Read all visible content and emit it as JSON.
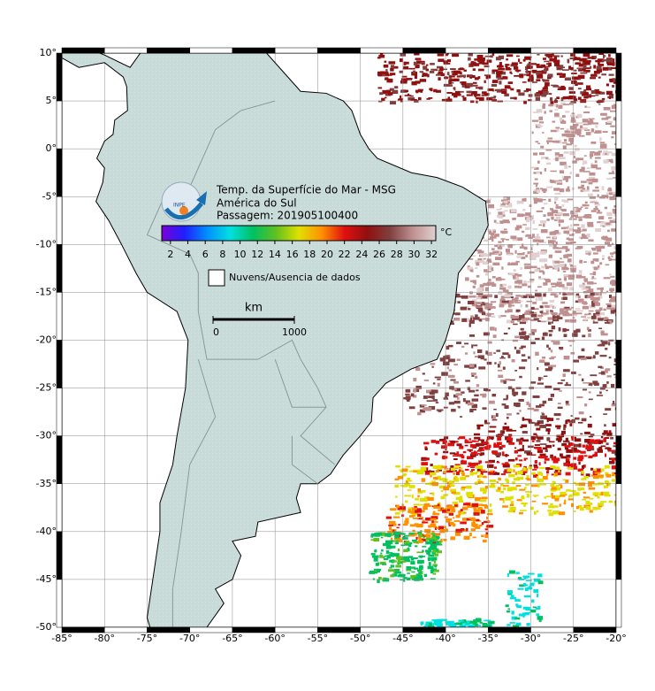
{
  "map": {
    "title_lines": [
      "Temp. da Superfície do Mar - MSG",
      "América do Sul",
      "Passagem: 201905100400"
    ],
    "lon_range": [
      -85,
      -20
    ],
    "lat_range": [
      -50,
      10
    ],
    "lon_ticks": [
      {
        "value": -85,
        "label": "-85°"
      },
      {
        "value": -80,
        "label": "-80°"
      },
      {
        "value": -75,
        "label": "-75°"
      },
      {
        "value": -70,
        "label": "-70°"
      },
      {
        "value": -65,
        "label": "-65°"
      },
      {
        "value": -60,
        "label": "-60°"
      },
      {
        "value": -55,
        "label": "-55°"
      },
      {
        "value": -50,
        "label": "-50°"
      },
      {
        "value": -45,
        "label": "-45°"
      },
      {
        "value": -40,
        "label": "-40°"
      },
      {
        "value": -35,
        "label": "-35°"
      },
      {
        "value": -30,
        "label": "-30°"
      },
      {
        "value": -25,
        "label": "-25°"
      },
      {
        "value": -20,
        "label": "-20°"
      }
    ],
    "lat_ticks": [
      {
        "value": 10,
        "label": "10°"
      },
      {
        "value": 5,
        "label": "5°"
      },
      {
        "value": 0,
        "label": "0°"
      },
      {
        "value": -5,
        "label": "-5°"
      },
      {
        "value": -10,
        "label": "-10°"
      },
      {
        "value": -15,
        "label": "-15°"
      },
      {
        "value": -20,
        "label": "-20°"
      },
      {
        "value": -25,
        "label": "-25°"
      },
      {
        "value": -30,
        "label": "-30°"
      },
      {
        "value": -35,
        "label": "-35°"
      },
      {
        "value": -40,
        "label": "-40°"
      },
      {
        "value": -45,
        "label": "-45°"
      },
      {
        "value": -50,
        "label": "-50°"
      }
    ],
    "colorbar": {
      "range": [
        1,
        32.5
      ],
      "ticks": [
        2,
        4,
        6,
        8,
        10,
        12,
        14,
        16,
        18,
        20,
        22,
        24,
        26,
        28,
        30,
        32
      ],
      "unit": "°C",
      "colors": [
        "#7a00d8",
        "#1f1fff",
        "#0090ff",
        "#00e0e0",
        "#00c060",
        "#60c020",
        "#e0e000",
        "#ff9000",
        "#e01010",
        "#901010",
        "#804040",
        "#c09090",
        "#e0d0d0"
      ]
    },
    "legend": "Nuvens/Ausencia de dados",
    "scale": {
      "unit": "km",
      "labels": [
        0,
        1000
      ]
    }
  }
}
